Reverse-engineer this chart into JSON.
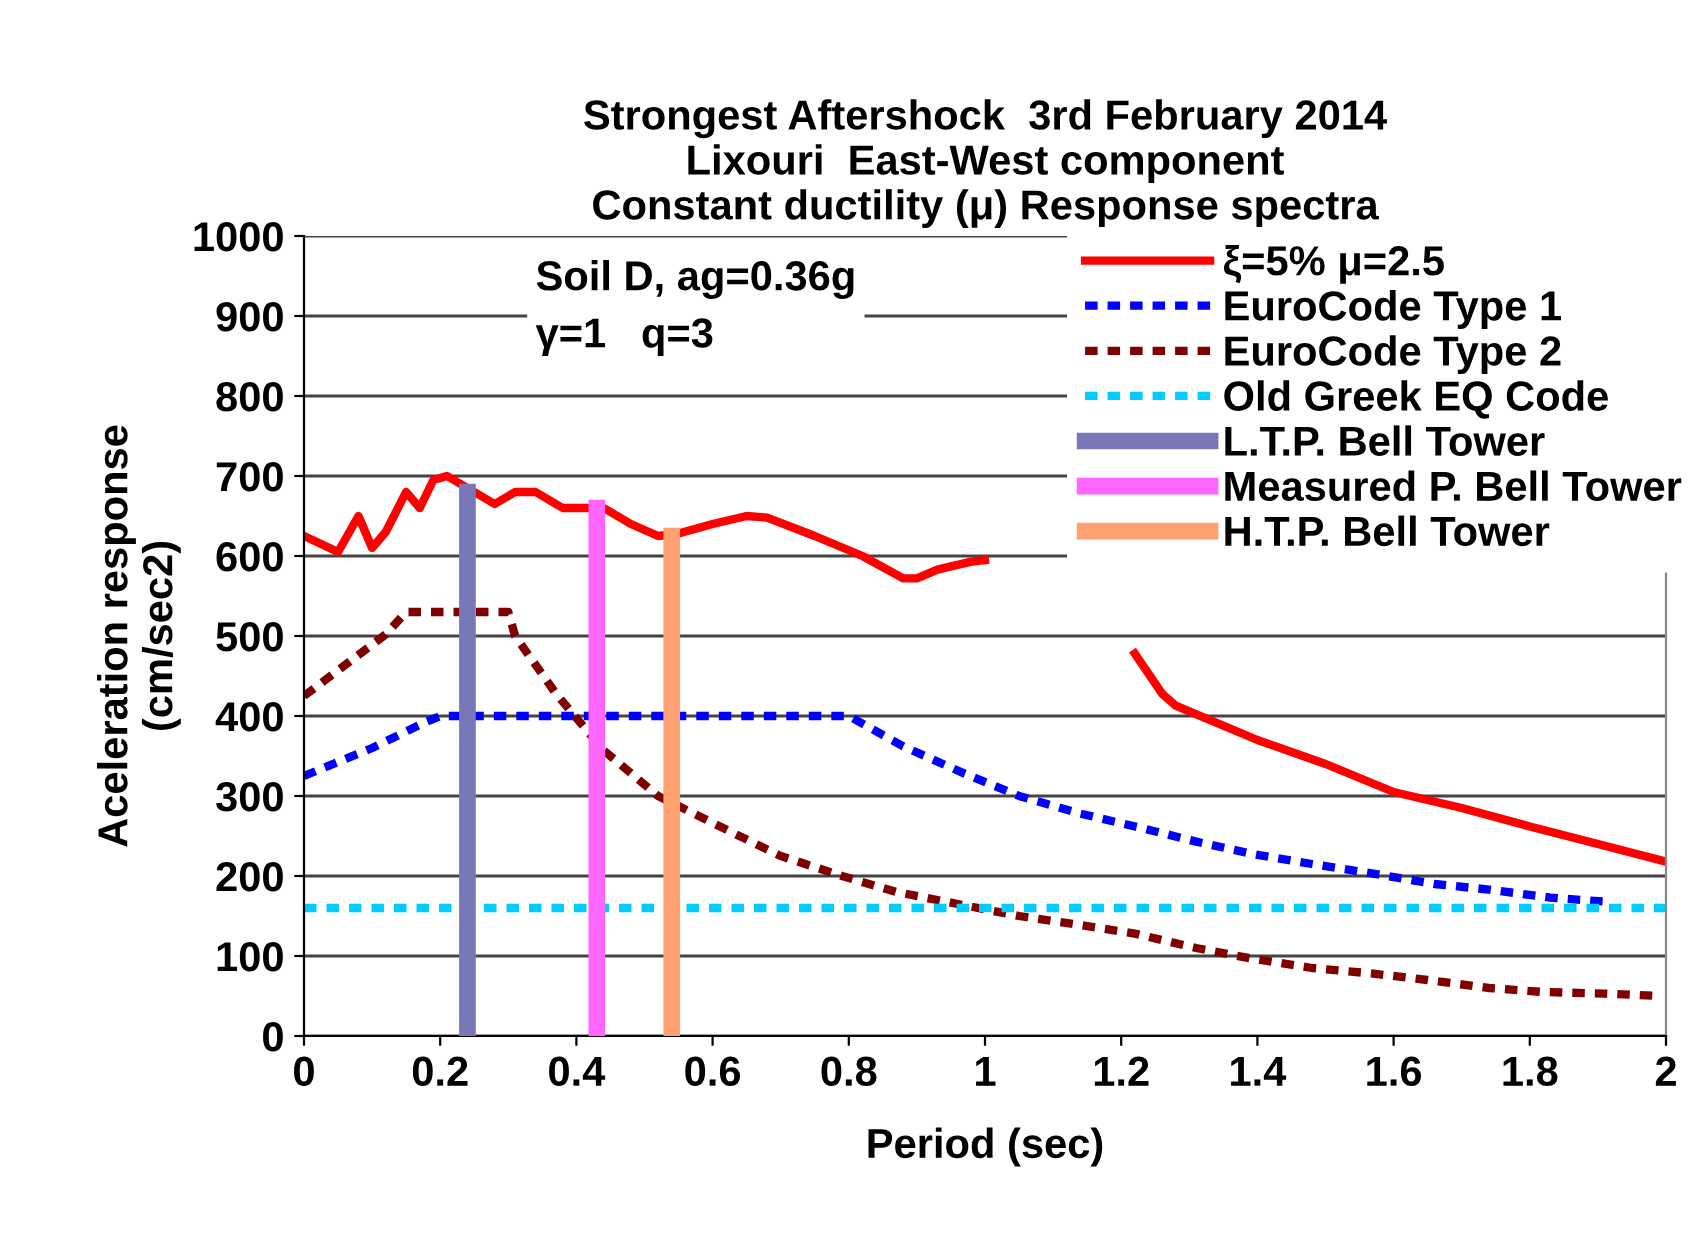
{
  "chart_data": {
    "type": "line",
    "title": "Strongest Aftershock  3rd February 2014\nLixouri  East-West component\nConstant ductility (μ) Response spectra",
    "xlabel": "Period (sec)",
    "ylabel": "Aceleration response\n(cm/sec2)",
    "xlim": [
      0,
      2
    ],
    "ylim": [
      0,
      1000
    ],
    "xticks": [
      0,
      0.2,
      0.4,
      0.6,
      0.8,
      1,
      1.2,
      1.4,
      1.6,
      1.8,
      2
    ],
    "yticks": [
      0,
      100,
      200,
      300,
      400,
      500,
      600,
      700,
      800,
      900,
      1000
    ],
    "grid": "y",
    "legend": "top right",
    "marker": "none",
    "annotations": [
      "Soil D, ag=0.36g\nγ=1   q=3"
    ],
    "series": [
      {
        "name": "ξ=5% μ=2.5",
        "color": "#ff0000",
        "line_style": "solid",
        "x": [
          0,
          0.05,
          0.08,
          0.1,
          0.12,
          0.15,
          0.17,
          0.19,
          0.21,
          0.25,
          0.28,
          0.31,
          0.34,
          0.38,
          0.44,
          0.48,
          0.52,
          0.55,
          0.6,
          0.65,
          0.68,
          0.75,
          0.82,
          0.88,
          0.9,
          0.93,
          0.98,
          1.0,
          1.1,
          1.22,
          1.26,
          1.28,
          1.4,
          1.5,
          1.6,
          1.7,
          1.8,
          1.9,
          2.0
        ],
        "values": [
          625,
          605,
          650,
          610,
          630,
          680,
          660,
          695,
          700,
          680,
          665,
          680,
          680,
          660,
          660,
          640,
          625,
          628,
          640,
          650,
          648,
          625,
          600,
          572,
          572,
          583,
          593,
          595,
          null,
          478,
          428,
          413,
          370,
          340,
          305,
          285,
          262,
          240,
          218
        ]
      },
      {
        "name": "EuroCode Type 1",
        "color": "#0000ff",
        "line_style": "dashed",
        "x": [
          0,
          0.1,
          0.18,
          0.2,
          0.8,
          0.88,
          0.97,
          1.05,
          1.14,
          1.23,
          1.31,
          1.39,
          1.48,
          1.57,
          1.66,
          1.74,
          1.83,
          1.91
        ],
        "values": [
          325,
          360,
          393,
          400,
          400,
          362,
          328,
          300,
          278,
          260,
          243,
          228,
          215,
          203,
          190,
          183,
          173,
          168
        ]
      },
      {
        "name": "EuroCode Type 2",
        "color": "#800000",
        "line_style": "dashed",
        "x": [
          0,
          0.12,
          0.15,
          0.3,
          0.31,
          0.37,
          0.44,
          0.52,
          0.62,
          0.7,
          0.79,
          0.87,
          0.96,
          1.05,
          1.13,
          1.22,
          1.31,
          1.39,
          1.48,
          1.57,
          1.65,
          1.74,
          1.82,
          1.91,
          1.99
        ],
        "values": [
          425,
          502,
          530,
          530,
          500,
          428,
          357,
          300,
          258,
          225,
          200,
          180,
          165,
          150,
          140,
          128,
          110,
          97,
          85,
          78,
          70,
          60,
          55,
          53,
          50
        ]
      },
      {
        "name": "Old Greek EQ Code",
        "color": "#00ccff",
        "line_style": "dashed",
        "x": [
          0,
          2
        ],
        "values": [
          160,
          160
        ]
      },
      {
        "name": "L.T.P. Bell Tower",
        "color": "#7878b8",
        "line_style": "solid",
        "x": [
          0.24,
          0.24
        ],
        "values": [
          0,
          680
        ]
      },
      {
        "name": "Measured P. Bell Tower",
        "color": "#ff66ff",
        "line_style": "solid",
        "x": [
          0.43,
          0.43
        ],
        "values": [
          0,
          660
        ]
      },
      {
        "name": "H.T.P. Bell Tower",
        "color": "#ffa070",
        "line_style": "solid",
        "x": [
          0.54,
          0.54
        ],
        "values": [
          0,
          625
        ]
      }
    ]
  }
}
